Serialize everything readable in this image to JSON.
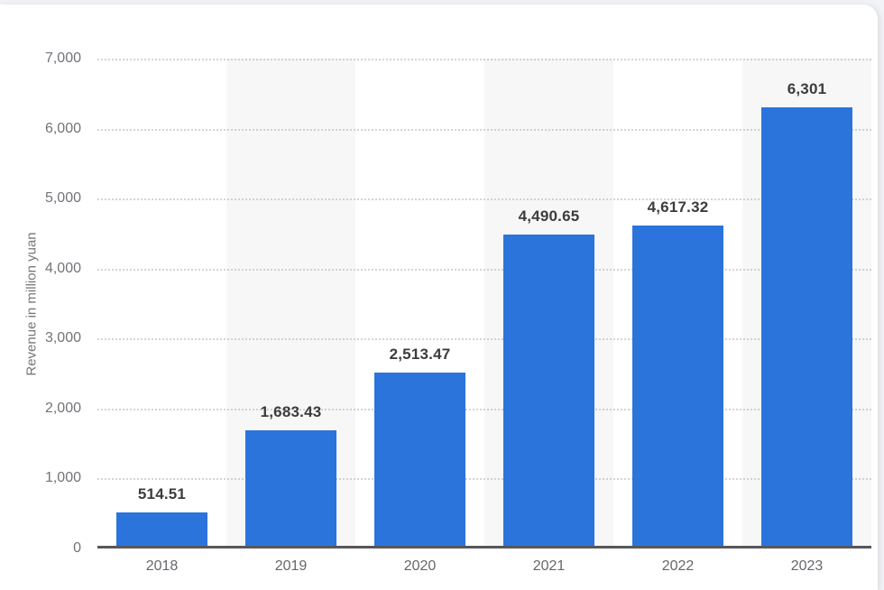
{
  "chart_data": {
    "type": "bar",
    "title": "",
    "xlabel": "",
    "ylabel": "Revenue in million yuan",
    "categories": [
      "2018",
      "2019",
      "2020",
      "2021",
      "2022",
      "2023"
    ],
    "values": [
      514.51,
      1683.43,
      2513.47,
      4490.65,
      4617.32,
      6301
    ],
    "value_labels": [
      "514.51",
      "1,683.43",
      "2,513.47",
      "4,490.65",
      "4,617.32",
      "6,301"
    ],
    "ylim": [
      0,
      7000
    ],
    "yticks": [
      {
        "value": 7000,
        "label": "7,000"
      },
      {
        "value": 6000,
        "label": "6,000"
      },
      {
        "value": 5000,
        "label": "5,000"
      },
      {
        "value": 4000,
        "label": "4,000"
      },
      {
        "value": 3000,
        "label": "3,000"
      },
      {
        "value": 2000,
        "label": "2,000"
      },
      {
        "value": 1000,
        "label": "1,000"
      },
      {
        "value": 0,
        "label": "0"
      }
    ],
    "grid": "horizontal-dotted",
    "legend": "none",
    "banded_columns": [
      1,
      3,
      5
    ],
    "colors": {
      "bar": "#2b74db",
      "band": "#f7f7f8",
      "baseline": "#57575b",
      "value_label": "#3e3b3b",
      "page_bg": "#f2f3f6",
      "card_bg": "#ffffff"
    }
  }
}
